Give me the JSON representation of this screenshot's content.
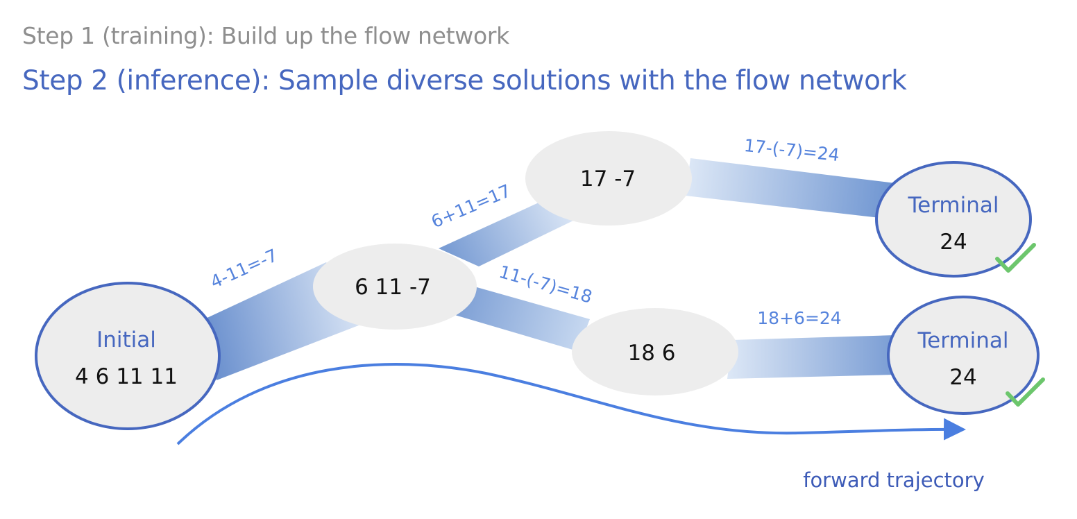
{
  "header": {
    "step1": "Step 1 (training): Build up the flow network",
    "step2": "Step 2 (inference): Sample diverse solutions with the flow network"
  },
  "nodes": {
    "initial": {
      "title": "Initial",
      "value": "4 6 11 11"
    },
    "state_a": {
      "value": "6 11 -7"
    },
    "state_b": {
      "value": "17 -7"
    },
    "state_c": {
      "value": "18 6"
    },
    "terminal_top": {
      "title": "Terminal",
      "value": "24"
    },
    "terminal_bottom": {
      "title": "Terminal",
      "value": "24"
    }
  },
  "edges": {
    "e1": "4-11=-7",
    "e2": "6+11=17",
    "e3": "11-(-7)=18",
    "e4": "17-(-7)=24",
    "e5": "18+6=24"
  },
  "trajectory": {
    "label": "forward trajectory"
  },
  "colors": {
    "title_gray": "#8e8e8e",
    "title_blue": "#4667bf",
    "node_fill": "#ededed",
    "node_border": "#4667bf",
    "edge_label": "#5583dc",
    "check_green": "#6cc66c"
  }
}
